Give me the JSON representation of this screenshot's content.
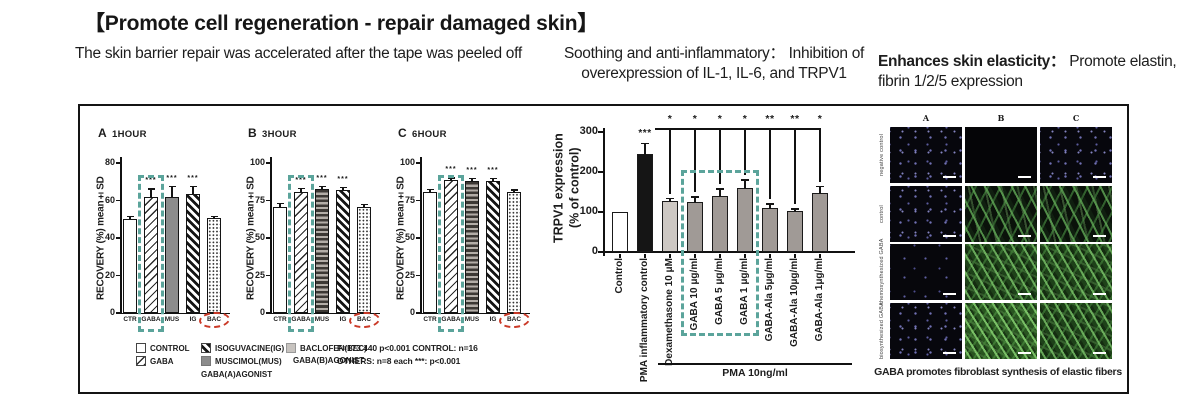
{
  "title": "【Promote cell regeneration - repair damaged skin】",
  "headings": {
    "left": "The skin barrier repair was accelerated after the tape was peeled off",
    "middle": "Soothing and anti-inflammatory： Inhibition of overexpression of IL-1, IL-6, and TRPV1",
    "right_bold": "Enhances skin elasticity：",
    "right_rest": " Promote elastin, fibrin 1/2/5 expression"
  },
  "chart_data": [
    {
      "type": "bar",
      "panel": "A",
      "time": "1HOUR",
      "ylabel": "RECOVERY (%) mean±SD",
      "ylim": [
        0,
        80
      ],
      "yticks": [
        0,
        20,
        40,
        60,
        80
      ],
      "categories": [
        "CTR",
        "GABA",
        "MUS",
        "IG",
        "BAC"
      ],
      "values": [
        50,
        62,
        62,
        63.5,
        50.5
      ],
      "errors": [
        2,
        4.5,
        6,
        4.5,
        1.5
      ],
      "sig": [
        "",
        "***",
        "***",
        "***",
        ""
      ],
      "patterns": [
        "plain",
        "diag",
        "solid",
        "diag2",
        "dots"
      ],
      "highlight": "GABA",
      "circled": "BAC"
    },
    {
      "type": "bar",
      "panel": "B",
      "time": "3HOUR",
      "ylabel": "RECOVERY (%) mean±SD",
      "ylim": [
        0,
        100
      ],
      "yticks": [
        0,
        25,
        50,
        75,
        100
      ],
      "categories": [
        "CTR",
        "GABA",
        "MUS",
        "IG",
        "BAC"
      ],
      "values": [
        71,
        81,
        83,
        82,
        70.5
      ],
      "errors": [
        2.5,
        2.5,
        2,
        2,
        2.5
      ],
      "sig": [
        "",
        "***",
        "***",
        "***",
        ""
      ],
      "patterns": [
        "plain",
        "diag",
        "hstripe",
        "diag2",
        "dots"
      ],
      "highlight": "GABA",
      "circled": "BAC"
    },
    {
      "type": "bar",
      "panel": "C",
      "time": "6HOUR",
      "ylabel": "RECOVERY (%) mean±SD",
      "ylim": [
        0,
        100
      ],
      "yticks": [
        0,
        25,
        50,
        75,
        100
      ],
      "categories": [
        "CTR",
        "GABA",
        "MUS",
        "IG",
        "BAC"
      ],
      "values": [
        81,
        89,
        88,
        88,
        80.5
      ],
      "errors": [
        2,
        1.5,
        2,
        2,
        2
      ],
      "sig": [
        "",
        "***",
        "***",
        "***",
        ""
      ],
      "patterns": [
        "plain",
        "diag",
        "hstripe",
        "diag2",
        "dots"
      ],
      "highlight": "GABA",
      "circled": "BAC"
    },
    {
      "type": "bar",
      "id": "trpv1",
      "ylabel_lines": [
        "TRPV1 expression",
        "(% of control)"
      ],
      "ylim": [
        0,
        300
      ],
      "yticks": [
        0,
        100,
        200,
        300
      ],
      "categories": [
        "Control",
        "PMA inflammatory control",
        "Dexamethasone 10 μM",
        "GABA 10 μg/ml",
        "GABA 5 μg/ml",
        "GABA 1 μg/ml",
        "GABA-Ala 5μg/ml",
        "GABA-Ala 10μg/ml",
        "GABA-Ala 1μg/ml"
      ],
      "values": [
        100,
        245,
        128,
        125,
        140,
        160,
        110,
        103,
        148
      ],
      "errors": [
        0,
        28,
        8,
        14,
        20,
        22,
        12,
        6,
        18
      ],
      "bar_sig": [
        "",
        "***",
        "",
        "",
        "",
        "",
        "",
        "",
        ""
      ],
      "bracket_from": "Dexamethasone 10 μM",
      "bracket_sig": [
        "*",
        "*",
        "*",
        "*",
        "**",
        "**",
        "*"
      ],
      "highlight": [
        "GABA 10 μg/ml",
        "GABA 5 μg/ml",
        "GABA 1 μg/ml"
      ],
      "group_label": "PMA  10ng/ml"
    }
  ],
  "legend": {
    "items": [
      {
        "label": "CONTROL",
        "pattern": "plain"
      },
      {
        "label": "GABA",
        "pattern": "diag"
      },
      {
        "label": "ISOGUVACINE(IG)",
        "pattern": "diag2"
      },
      {
        "label": "MUSCIMOL(MUS)",
        "pattern": "solid"
      },
      {
        "label": "BACLOFEN(BEC)",
        "pattern": "bac"
      }
    ],
    "col2_note": "GABA(A)AGONIST",
    "col3_note": "GABA(B)AGONIST",
    "stats_line1": "F=173.440  p<0.001  CONTROL:  n=16",
    "stats_line2": "OTHERS:  n=8 each ***:  p<0.001"
  },
  "micrograph": {
    "col_headers": [
      "A",
      "B",
      "C"
    ],
    "row_labels": [
      "negative control",
      "control",
      "chemosynthesized GABA",
      "biosynthesized GABA"
    ],
    "cell_types": [
      [
        "dots",
        "black",
        "dots"
      ],
      [
        "dots",
        "fibmed",
        "fibmed"
      ],
      [
        "dots-sparse",
        "fibdense",
        "fibdense"
      ],
      [
        "dots",
        "fibdensest",
        "fibdense"
      ]
    ],
    "caption": "GABA promotes fibroblast synthesis of elastic fibers"
  },
  "colors": {
    "accent_teal": "#5ba49b",
    "accent_red": "#cb3a28",
    "bar_dark": "#151515",
    "bar_gray": "#a09a96",
    "bar_lightgray": "#cdc8c3"
  }
}
